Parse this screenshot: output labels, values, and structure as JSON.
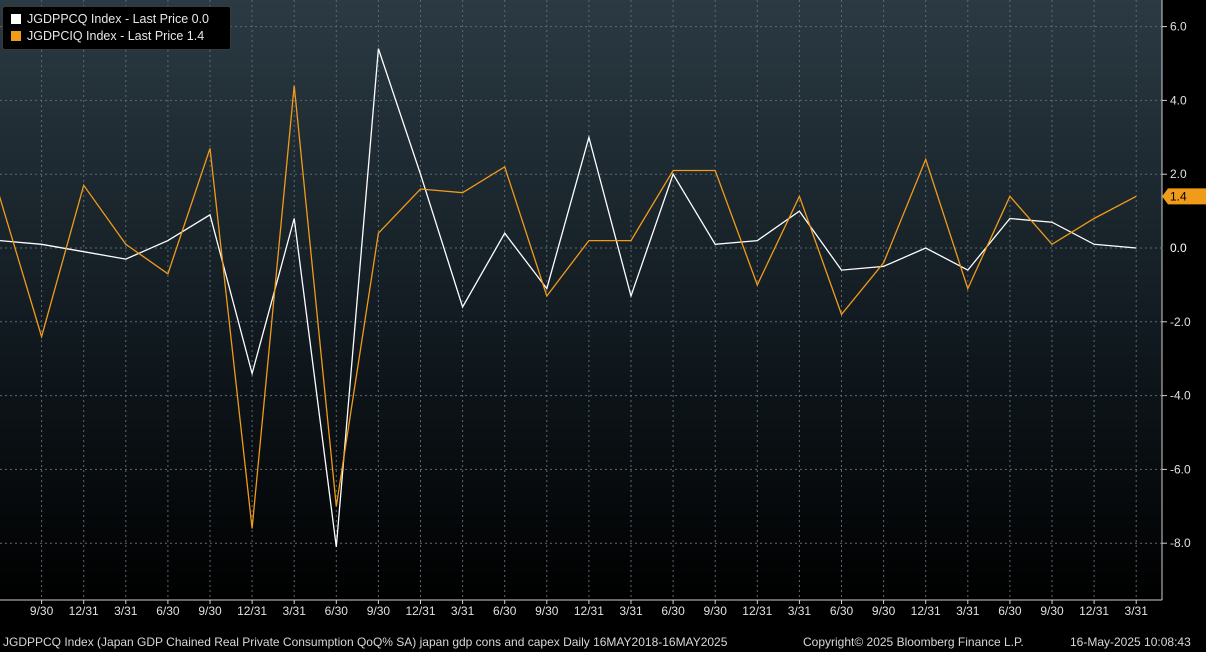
{
  "chart_data": {
    "type": "line",
    "x": [
      "2018-06-30",
      "2018-09-30",
      "2018-12-31",
      "2019-03-31",
      "2019-06-30",
      "2019-09-30",
      "2019-12-31",
      "2020-03-31",
      "2020-06-30",
      "2020-09-30",
      "2020-12-31",
      "2021-03-31",
      "2021-06-30",
      "2021-09-30",
      "2021-12-31",
      "2022-03-31",
      "2022-06-30",
      "2022-09-30",
      "2022-12-31",
      "2023-03-31",
      "2023-06-30",
      "2023-09-30",
      "2023-12-31",
      "2024-03-31",
      "2024-06-30",
      "2024-09-30",
      "2024-12-31",
      "2025-03-31"
    ],
    "series": [
      {
        "name": "JGDPPCQ Index - Last Price 0.0",
        "color": "#ffffff",
        "values": [
          0.2,
          0.1,
          -0.1,
          -0.3,
          0.2,
          0.9,
          -3.4,
          0.8,
          -8.1,
          5.4,
          2.0,
          -1.6,
          0.4,
          -1.1,
          3.0,
          -1.3,
          2.0,
          0.1,
          0.2,
          1.0,
          -0.6,
          -0.5,
          0.0,
          -0.6,
          0.8,
          0.7,
          0.1,
          0.0
        ]
      },
      {
        "name": "JGDPCIQ Index - Last Price 1.4",
        "color": "#f09b1a",
        "values": [
          1.4,
          -2.4,
          1.7,
          0.1,
          -0.7,
          2.7,
          -7.6,
          4.4,
          -7.0,
          0.4,
          1.6,
          1.5,
          2.2,
          -1.3,
          0.2,
          0.2,
          2.1,
          2.1,
          -1.0,
          1.4,
          -1.8,
          -0.4,
          2.4,
          -1.1,
          1.4,
          0.1,
          0.8,
          1.4
        ]
      }
    ],
    "y_ticks": [
      "6.0",
      "4.0",
      "2.0",
      "0.0",
      "-2.0",
      "-4.0",
      "-6.0",
      "-8.0"
    ],
    "x_ticks": [
      "9/30",
      "12/31",
      "3/31",
      "6/30",
      "9/30",
      "12/31",
      "3/31",
      "6/30",
      "9/30",
      "12/31",
      "3/31",
      "6/30",
      "9/30",
      "12/31",
      "3/31",
      "6/30",
      "9/30",
      "12/31",
      "3/31",
      "6/30",
      "9/30",
      "12/31",
      "3/31",
      "6/30",
      "9/30",
      "12/31",
      "3/31"
    ],
    "ylim": [
      -9.2,
      6.6
    ],
    "last_value_labels": [
      "1.4",
      "0.0"
    ],
    "grid": true,
    "legend": "top-left"
  },
  "legend": {
    "items": [
      {
        "label": "JGDPPCQ Index - Last Price 0.0",
        "color": "#ffffff"
      },
      {
        "label": "JGDPCIQ Index - Last Price 1.4",
        "color": "#f09b1a"
      }
    ]
  },
  "footer": {
    "description": "JGDPPCQ Index (Japan GDP Chained Real Private Consumption QoQ% SA) japan gdp cons and capex  Daily 16MAY2018-16MAY2025",
    "copyright": "Copyright© 2025 Bloomberg Finance L.P.",
    "timestamp": "16-May-2025 10:08:43"
  }
}
